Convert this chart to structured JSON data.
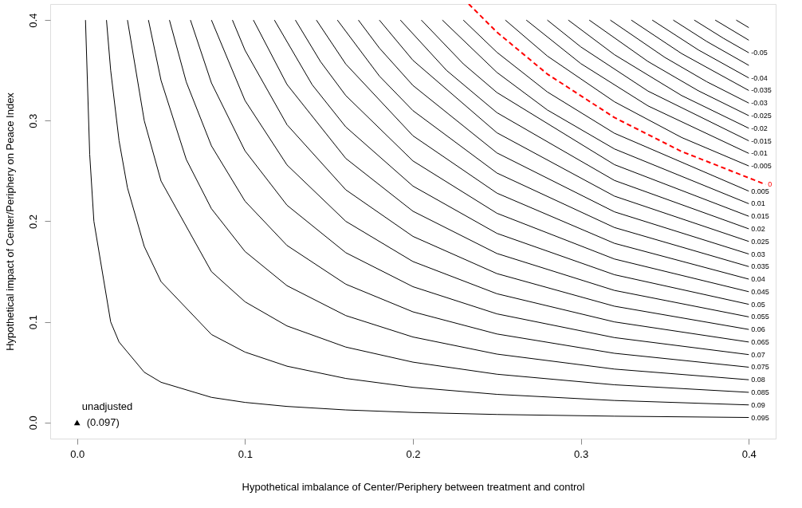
{
  "chart_data": {
    "type": "line",
    "xlabel": "Hypothetical imbalance of Center/Periphery between treatment and control",
    "ylabel": "Hypothetical impact of Center/Periphery on Peace Index",
    "xlim": [
      -0.016,
      0.416
    ],
    "ylim": [
      -0.016,
      0.416
    ],
    "xticks": [
      {
        "value": 0,
        "label": "0.0"
      },
      {
        "value": 0.1,
        "label": "0.1"
      },
      {
        "value": 0.2,
        "label": "0.2"
      },
      {
        "value": 0.3,
        "label": "0.3"
      },
      {
        "value": 0.4,
        "label": "0.4"
      }
    ],
    "yticks": [
      {
        "value": 0,
        "label": "0.0"
      },
      {
        "value": 0.1,
        "label": "0.1"
      },
      {
        "value": 0.2,
        "label": "0.2"
      },
      {
        "value": 0.3,
        "label": "0.3"
      },
      {
        "value": 0.4,
        "label": "0.4"
      }
    ],
    "grid": false,
    "marker": "none",
    "line_style": "solid",
    "annotations": [
      {
        "text": "unadjusted",
        "x": 0,
        "y": 0
      },
      {
        "text": "(0.097)",
        "x": 0,
        "y": 0
      }
    ],
    "series": [
      {
        "name": "0.095",
        "color": "#000000",
        "x": [
          0.005,
          0.0075,
          0.01,
          0.02,
          0.025,
          0.04,
          0.05,
          0.08,
          0.1,
          0.125,
          0.16,
          0.2,
          0.25,
          0.32,
          0.4
        ],
        "values": [
          0.4,
          0.2667,
          0.2,
          0.1,
          0.08,
          0.05,
          0.04,
          0.025,
          0.02,
          0.016,
          0.0125,
          0.01,
          0.008,
          0.0063,
          0.005
        ]
      },
      {
        "name": "0.09",
        "color": "#000000",
        "x": [
          0.0175,
          0.02,
          0.025,
          0.03,
          0.04,
          0.05,
          0.08,
          0.1,
          0.125,
          0.16,
          0.2,
          0.25,
          0.32,
          0.4
        ],
        "values": [
          0.4,
          0.35,
          0.28,
          0.2333,
          0.175,
          0.14,
          0.0875,
          0.07,
          0.056,
          0.0438,
          0.035,
          0.028,
          0.0219,
          0.0175
        ]
      },
      {
        "name": "0.085",
        "color": "#000000",
        "x": [
          0.03,
          0.04,
          0.05,
          0.08,
          0.1,
          0.125,
          0.16,
          0.2,
          0.25,
          0.32,
          0.4
        ],
        "values": [
          0.4,
          0.3,
          0.24,
          0.15,
          0.12,
          0.096,
          0.075,
          0.06,
          0.048,
          0.0375,
          0.03
        ]
      },
      {
        "name": "0.08",
        "color": "#000000",
        "x": [
          0.0425,
          0.05,
          0.065,
          0.08,
          0.1,
          0.125,
          0.16,
          0.2,
          0.25,
          0.32,
          0.4
        ],
        "values": [
          0.4,
          0.34,
          0.2615,
          0.2125,
          0.17,
          0.136,
          0.1063,
          0.085,
          0.068,
          0.0531,
          0.0425
        ]
      },
      {
        "name": "0.075",
        "color": "#000000",
        "x": [
          0.055,
          0.065,
          0.08,
          0.1,
          0.125,
          0.16,
          0.2,
          0.25,
          0.32,
          0.4
        ],
        "values": [
          0.4,
          0.3385,
          0.275,
          0.22,
          0.176,
          0.1375,
          0.11,
          0.088,
          0.0688,
          0.055
        ]
      },
      {
        "name": "0.07",
        "color": "#000000",
        "x": [
          0.0675,
          0.08,
          0.1,
          0.125,
          0.16,
          0.2,
          0.25,
          0.32,
          0.4
        ],
        "values": [
          0.4,
          0.3375,
          0.27,
          0.216,
          0.1688,
          0.135,
          0.108,
          0.0844,
          0.0675
        ]
      },
      {
        "name": "0.065",
        "color": "#000000",
        "x": [
          0.08,
          0.1,
          0.125,
          0.16,
          0.2,
          0.25,
          0.32,
          0.4
        ],
        "values": [
          0.4,
          0.32,
          0.256,
          0.2,
          0.16,
          0.128,
          0.1,
          0.08
        ]
      },
      {
        "name": "0.06",
        "color": "#000000",
        "x": [
          0.0925,
          0.1,
          0.125,
          0.16,
          0.2,
          0.25,
          0.32,
          0.4
        ],
        "values": [
          0.4,
          0.37,
          0.296,
          0.2313,
          0.185,
          0.148,
          0.1156,
          0.0925
        ]
      },
      {
        "name": "0.055",
        "color": "#000000",
        "x": [
          0.105,
          0.125,
          0.16,
          0.2,
          0.25,
          0.32,
          0.4
        ],
        "values": [
          0.4,
          0.336,
          0.2625,
          0.21,
          0.168,
          0.1313,
          0.105
        ]
      },
      {
        "name": "0.05",
        "color": "#000000",
        "x": [
          0.1175,
          0.14,
          0.16,
          0.2,
          0.25,
          0.32,
          0.4
        ],
        "values": [
          0.4,
          0.3357,
          0.2938,
          0.235,
          0.188,
          0.1469,
          0.1175
        ]
      },
      {
        "name": "0.045",
        "color": "#000000",
        "x": [
          0.13,
          0.145,
          0.16,
          0.2,
          0.25,
          0.32,
          0.4
        ],
        "values": [
          0.4,
          0.3586,
          0.325,
          0.26,
          0.208,
          0.1625,
          0.13
        ]
      },
      {
        "name": "0.04",
        "color": "#000000",
        "x": [
          0.1425,
          0.16,
          0.2,
          0.25,
          0.32,
          0.4
        ],
        "values": [
          0.4,
          0.3563,
          0.285,
          0.228,
          0.1781,
          0.1425
        ]
      },
      {
        "name": "0.035",
        "color": "#000000",
        "x": [
          0.155,
          0.18,
          0.2,
          0.25,
          0.32,
          0.4
        ],
        "values": [
          0.4,
          0.3444,
          0.31,
          0.248,
          0.1938,
          0.155
        ]
      },
      {
        "name": "0.03",
        "color": "#000000",
        "x": [
          0.1675,
          0.18,
          0.2,
          0.25,
          0.32,
          0.4
        ],
        "values": [
          0.4,
          0.3722,
          0.335,
          0.268,
          0.2094,
          0.1675
        ]
      },
      {
        "name": "0.025",
        "color": "#000000",
        "x": [
          0.18,
          0.2,
          0.25,
          0.32,
          0.4
        ],
        "values": [
          0.4,
          0.36,
          0.288,
          0.225,
          0.18
        ]
      },
      {
        "name": "0.02",
        "color": "#000000",
        "x": [
          0.1925,
          0.22,
          0.25,
          0.32,
          0.4
        ],
        "values": [
          0.4,
          0.35,
          0.308,
          0.2406,
          0.1925
        ]
      },
      {
        "name": "0.015",
        "color": "#000000",
        "x": [
          0.205,
          0.23,
          0.25,
          0.32,
          0.4
        ],
        "values": [
          0.4,
          0.3565,
          0.328,
          0.2563,
          0.205
        ]
      },
      {
        "name": "0.01",
        "color": "#000000",
        "x": [
          0.2175,
          0.25,
          0.28,
          0.32,
          0.4
        ],
        "values": [
          0.4,
          0.348,
          0.3107,
          0.2719,
          0.2175
        ]
      },
      {
        "name": "0.005",
        "color": "#000000",
        "x": [
          0.23,
          0.25,
          0.28,
          0.32,
          0.4
        ],
        "values": [
          0.4,
          0.368,
          0.3286,
          0.2875,
          0.23
        ]
      },
      {
        "name": "0",
        "color": "#ff0000",
        "line_style": "dashed",
        "x": [
          0.2332,
          0.25,
          0.28,
          0.32,
          0.36,
          0.41
        ],
        "values": [
          0.416,
          0.388,
          0.3464,
          0.3031,
          0.2694,
          0.2366
        ]
      },
      {
        "name": "-0.005",
        "color": "#000000",
        "x": [
          0.255,
          0.28,
          0.32,
          0.36,
          0.4
        ],
        "values": [
          0.4,
          0.3643,
          0.3188,
          0.2833,
          0.255
        ]
      },
      {
        "name": "-0.01",
        "color": "#000000",
        "x": [
          0.2675,
          0.3,
          0.34,
          0.4
        ],
        "values": [
          0.4,
          0.3567,
          0.3147,
          0.2675
        ]
      },
      {
        "name": "-0.015",
        "color": "#000000",
        "x": [
          0.28,
          0.3,
          0.34,
          0.4
        ],
        "values": [
          0.4,
          0.3733,
          0.3294,
          0.28
        ]
      },
      {
        "name": "-0.02",
        "color": "#000000",
        "x": [
          0.2925,
          0.32,
          0.36,
          0.4
        ],
        "values": [
          0.4,
          0.3656,
          0.325,
          0.2925
        ]
      },
      {
        "name": "-0.025",
        "color": "#000000",
        "x": [
          0.305,
          0.34,
          0.37,
          0.4
        ],
        "values": [
          0.4,
          0.3588,
          0.3297,
          0.305
        ]
      },
      {
        "name": "-0.03",
        "color": "#000000",
        "x": [
          0.3175,
          0.35,
          0.375,
          0.4
        ],
        "values": [
          0.4,
          0.3629,
          0.3387,
          0.3175
        ]
      },
      {
        "name": "-0.035",
        "color": "#000000",
        "x": [
          0.33,
          0.36,
          0.4
        ],
        "values": [
          0.4,
          0.3667,
          0.33
        ]
      },
      {
        "name": "-0.04",
        "color": "#000000",
        "x": [
          0.3425,
          0.37,
          0.4
        ],
        "values": [
          0.4,
          0.3703,
          0.3425
        ]
      },
      {
        "color": "#000000",
        "x": [
          0.355,
          0.375,
          0.4
        ],
        "values": [
          0.4,
          0.3787,
          0.355
        ]
      },
      {
        "name": "-0.05",
        "color": "#000000",
        "x": [
          0.3675,
          0.385,
          0.4
        ],
        "values": [
          0.4,
          0.3818,
          0.3675
        ]
      },
      {
        "color": "#000000",
        "x": [
          0.38,
          0.4
        ],
        "values": [
          0.4,
          0.38
        ]
      },
      {
        "color": "#000000",
        "x": [
          0.3925,
          0.4
        ],
        "values": [
          0.4,
          0.3925
        ]
      },
      {
        "type": "scatter",
        "marker": "triangle",
        "color": "#000000",
        "x": [
          0
        ],
        "values": [
          0
        ]
      }
    ]
  }
}
